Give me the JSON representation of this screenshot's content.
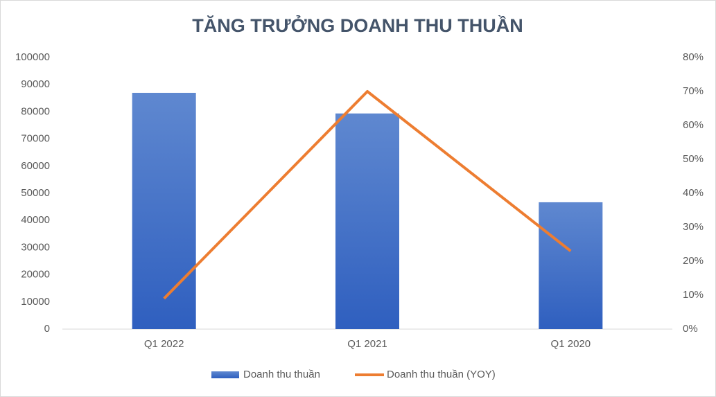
{
  "chart_data": {
    "type": "bar-line",
    "title": "TĂNG TRƯỞNG DOANH THU THUẦN",
    "categories": [
      "Q1 2022",
      "Q1 2021",
      "Q1 2020"
    ],
    "series": [
      {
        "name": "Doanh thu thuần",
        "type": "bar",
        "color": "#4472c4",
        "values": [
          87000,
          79400,
          46700
        ]
      },
      {
        "name": "Doanh thu thuần (YOY)",
        "type": "line",
        "axis": "y2",
        "color": "#ed7d31",
        "values": [
          9,
          70,
          23
        ]
      }
    ],
    "ylim": [
      0,
      100000
    ],
    "yticks": [
      0,
      10000,
      20000,
      30000,
      40000,
      50000,
      60000,
      70000,
      80000,
      90000,
      100000
    ],
    "y2lim": [
      0,
      80
    ],
    "y2ticks": [
      {
        "value": 0,
        "label": "0%"
      },
      {
        "value": 10,
        "label": "10%"
      },
      {
        "value": 20,
        "label": "20%"
      },
      {
        "value": 30,
        "label": "30%"
      },
      {
        "value": 40,
        "label": "40%"
      },
      {
        "value": 50,
        "label": "50%"
      },
      {
        "value": 60,
        "label": "60%"
      },
      {
        "value": 70,
        "label": "70%"
      },
      {
        "value": 80,
        "label": "80%"
      }
    ],
    "legend": "bottom"
  }
}
